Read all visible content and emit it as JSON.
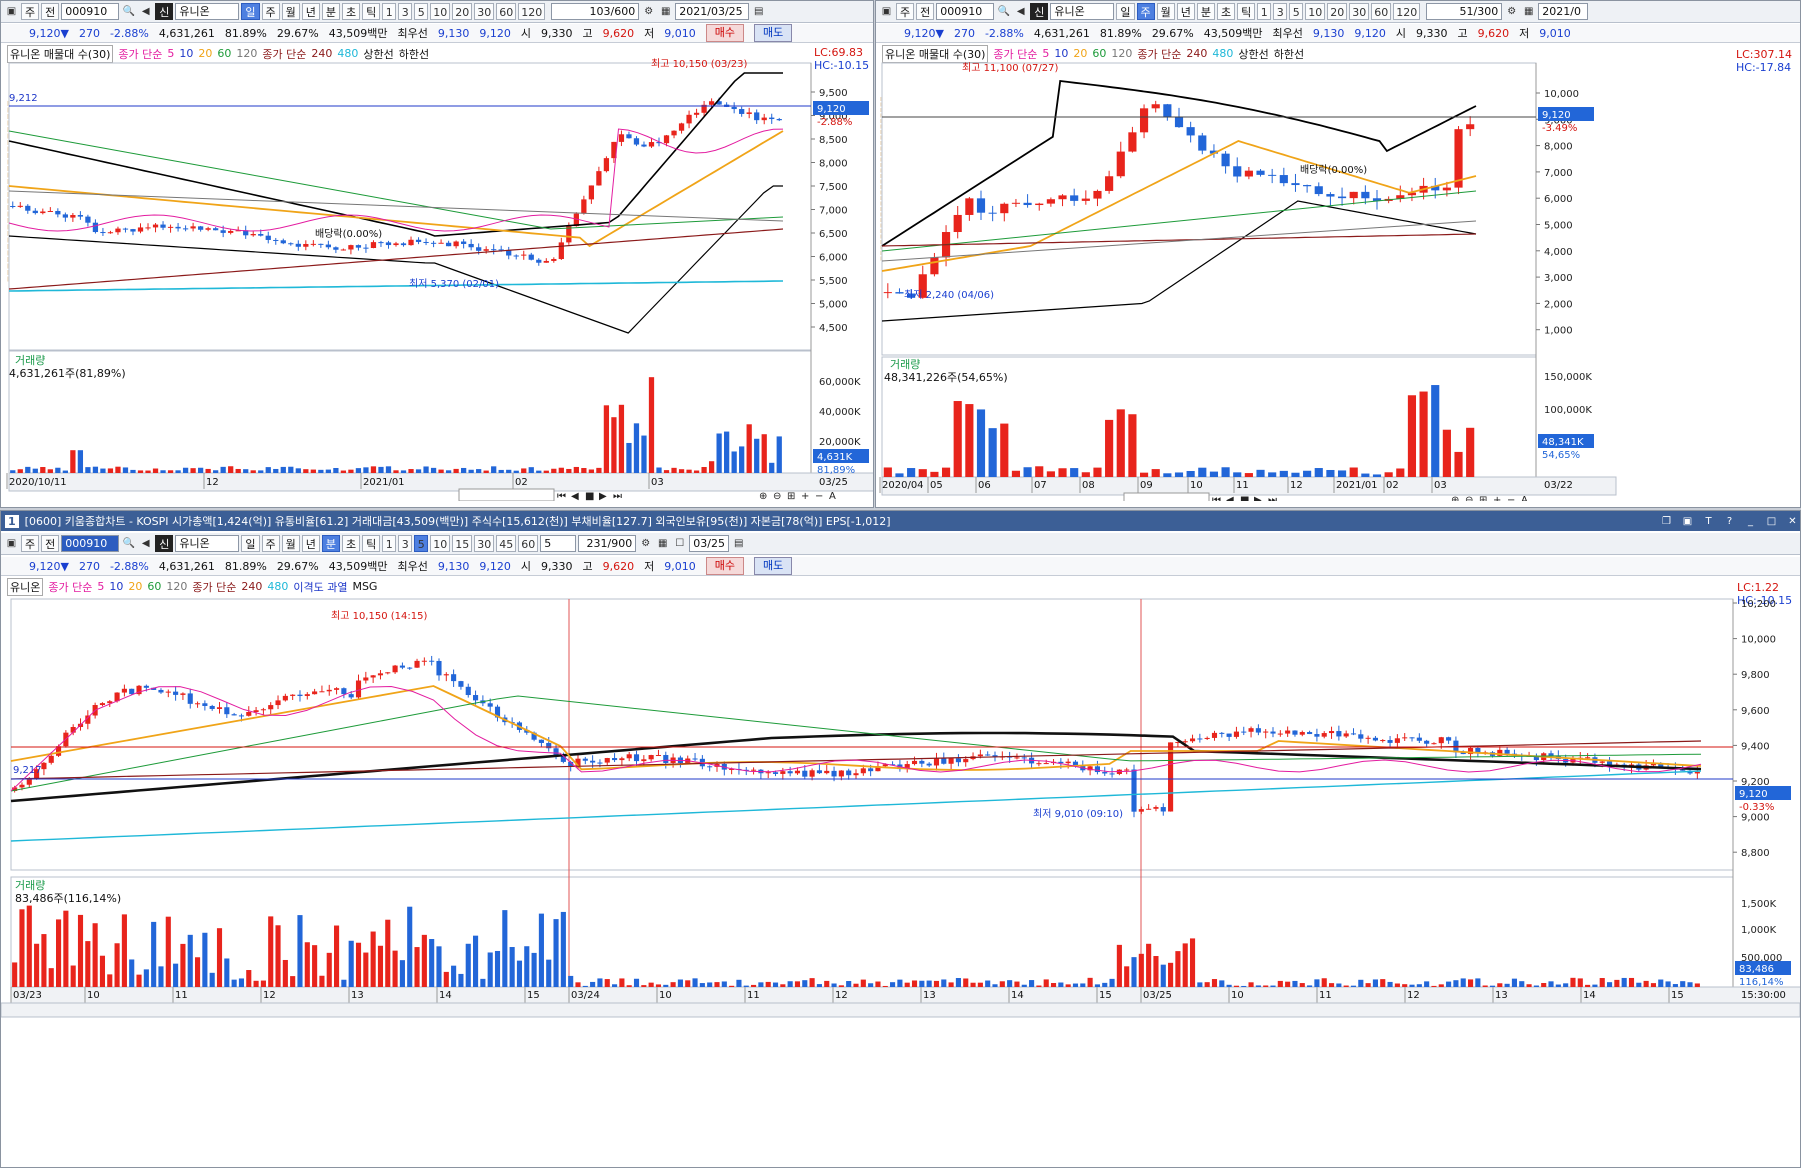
{
  "colors": {
    "up": "#e8241c",
    "down": "#2266d8",
    "ma5": "#e31ca0",
    "ma10": "#1f38c9",
    "ma20": "#f0a418",
    "ma60": "#1e9b3a",
    "ma120": "#777777",
    "ma240": "#8b1a1a",
    "ma480": "#1fb8d8",
    "bb": "#000000"
  },
  "common": {
    "code": "000910",
    "name": "유니온",
    "price": "9,120▼",
    "change": "270",
    "change_pct": "-2.88%",
    "volume": "4,631,261",
    "vol_ratio": "81.89%",
    "turnover_pct": "29.67%",
    "amount": "43,509백만",
    "best_label": "최우선",
    "ask": "9,130",
    "bid": "9,120",
    "open_label": "시",
    "open": "9,330",
    "high_label": "고",
    "high": "9,620",
    "low_label": "저",
    "low": "9,010",
    "buy": "매수",
    "sell": "매도",
    "name_tag": "유니온"
  },
  "toolbar": {
    "stock_tab": "주",
    "prev_tab": "전",
    "sin": "신",
    "periods": [
      "일",
      "주",
      "월",
      "년",
      "분",
      "초",
      "틱"
    ],
    "nums": [
      "1",
      "3",
      "5",
      "10",
      "20",
      "30",
      "60",
      "120"
    ]
  },
  "left": {
    "count": "103/600",
    "date": "2021/03/25",
    "sel_period": "일",
    "legend": {
      "mam": "유니온 매물대 수(30)",
      "ma": "종가 단순",
      "p5": "5",
      "p10": "10",
      "p20": "20",
      "p60": "60",
      "p120": "120",
      "ma2": "종가 단순",
      "p240": "240",
      "p480": "480",
      "upper": "상한선",
      "lower": "하한선"
    },
    "lc": "LC:69.83",
    "hc": "HC:-10.15",
    "price_tag": "9,120",
    "pct_tag": "-2.88%",
    "line_label": "9,212",
    "max_label": "최고 10,150 (03/23)",
    "min_label": "최저 5,370 (02/01)",
    "div_label": "배당락(0.00%)",
    "y_ticks": [
      "9,500",
      "9,000",
      "8,500",
      "8,000",
      "7,500",
      "7,000",
      "6,500",
      "6,000",
      "5,500",
      "5,000",
      "4,500"
    ],
    "vol_title": "거래량",
    "vol_value": "4,631,261주(81,89%)",
    "vol_ticks": [
      "60,000K",
      "40,000K",
      "20,000K"
    ],
    "vol_tag": "4,631K",
    "vol_pct": "81,89%",
    "x_labels": [
      "2020/10/11",
      "12",
      "2021/01",
      "02",
      "03"
    ],
    "x_end": "03/25"
  },
  "right": {
    "count": "51/300",
    "date": "2021/0",
    "sel_period": "주",
    "legend": {
      "mam": "유니온 매물대 수(30)",
      "ma": "종가 단순",
      "p5": "5",
      "p10": "10",
      "p20": "20",
      "p60": "60",
      "p120": "120",
      "ma2": "종가 단순",
      "p240": "240",
      "p480": "480",
      "upper": "상한선",
      "lower": "하한선"
    },
    "lc": "LC:307.14",
    "hc": "HC:-17.84",
    "price_tag": "9,120",
    "pct_tag": "-3.49%",
    "max_label": "최고 11,100 (07/27)",
    "min_label": "최저 2,240 (04/06)",
    "div_label": "배당락(0.00%)",
    "y_ticks": [
      "10,000",
      "9,000",
      "8,000",
      "7,000",
      "6,000",
      "5,000",
      "4,000",
      "3,000",
      "2,000",
      "1,000"
    ],
    "vol_title": "거래량",
    "vol_value": "48,341,226주(54,65%)",
    "vol_ticks": [
      "150,000K",
      "100,000K",
      "50,000K"
    ],
    "vol_tag": "48,341K",
    "vol_pct": "54,65%",
    "x_labels": [
      "2020/04",
      "05",
      "06",
      "07",
      "08",
      "09",
      "10",
      "11",
      "12",
      "2021/01",
      "02",
      "03"
    ],
    "x_end": "03/22"
  },
  "bottom": {
    "title": "[0600] 키움종합차트 - KOSPI 시가총액[1,424(억)] 유통비율[61.2] 거래대금[43,509(백만)] 주식수[15,612(천)] 부채비율[127.7] 외국인보유[95(천)] 자본금[78(억)] EPS[-1,012]",
    "win_num": "1",
    "nums": [
      "1",
      "3",
      "5",
      "10",
      "15",
      "30",
      "45",
      "60"
    ],
    "interval": "5",
    "count": "231/900",
    "date": "03/25",
    "sel_period": "분",
    "legend": {
      "name": "유니온",
      "ma": "종가 단순",
      "p5": "5",
      "p10": "10",
      "p20": "20",
      "p60": "60",
      "p120": "120",
      "ma2": "종가 단순",
      "p240": "240",
      "p480": "480",
      "disp": "이격도 과열",
      "msg": "MSG"
    },
    "lc": "LC:1.22",
    "hc": "HC:-10.15",
    "price_tag": "9,120",
    "pct_tag": "-0.33%",
    "line_label": "9,217",
    "max_label": "최고 10,150 (14:15)",
    "min_label": "최저 9,010 (09:10)",
    "y_ticks": [
      "10,200",
      "10,000",
      "9,800",
      "9,600",
      "9,400",
      "9,200",
      "9,000",
      "8,800"
    ],
    "vol_title": "거래량",
    "vol_value": "83,486주(116,14%)",
    "vol_ticks": [
      "1,500K",
      "1,000K",
      "500,000"
    ],
    "vol_tag": "83,486",
    "vol_pct": "116,14%",
    "x_labels": [
      "03/23",
      "10",
      "11",
      "12",
      "13",
      "14",
      "15",
      "03/24",
      "10",
      "11",
      "12",
      "13",
      "14",
      "15",
      "03/25",
      "10",
      "11",
      "12",
      "13",
      "14",
      "15"
    ],
    "x_end": "15:30:00"
  }
}
